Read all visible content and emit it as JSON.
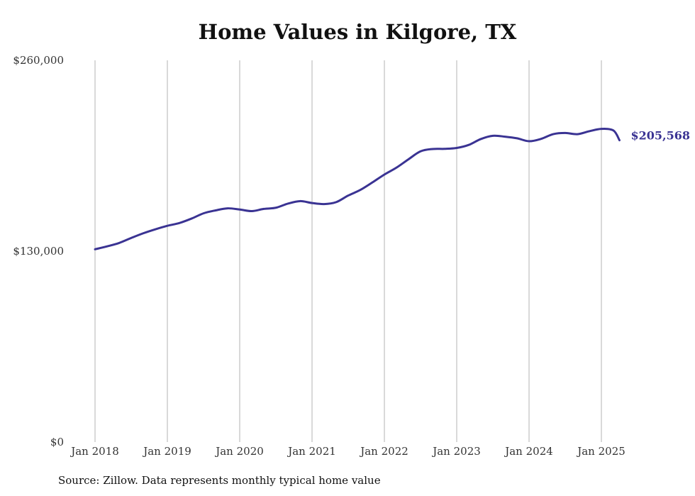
{
  "chart_data": {
    "type": "line",
    "title": "Home Values in Kilgore, TX",
    "xlabel": "",
    "ylabel": "",
    "ylim": [
      0,
      260000
    ],
    "y_ticks": [
      {
        "value": 0,
        "label": "$0"
      },
      {
        "value": 130000,
        "label": "$130,000"
      },
      {
        "value": 260000,
        "label": "$260,000"
      }
    ],
    "x_ticks": [
      {
        "value": 2018.0,
        "label": "Jan 2018"
      },
      {
        "value": 2019.0,
        "label": "Jan 2019"
      },
      {
        "value": 2020.0,
        "label": "Jan 2020"
      },
      {
        "value": 2021.0,
        "label": "Jan 2021"
      },
      {
        "value": 2022.0,
        "label": "Jan 2022"
      },
      {
        "value": 2023.0,
        "label": "Jan 2023"
      },
      {
        "value": 2024.0,
        "label": "Jan 2024"
      },
      {
        "value": 2025.0,
        "label": "Jan 2025"
      }
    ],
    "grid": "vertical",
    "line_color": "#3a3393",
    "end_label": "$205,568",
    "series": [
      {
        "name": "",
        "x": [
          "2018-01",
          "2018-03",
          "2018-05",
          "2018-07",
          "2018-09",
          "2018-11",
          "2019-01",
          "2019-03",
          "2019-05",
          "2019-07",
          "2019-09",
          "2019-11",
          "2020-01",
          "2020-03",
          "2020-05",
          "2020-07",
          "2020-09",
          "2020-11",
          "2021-01",
          "2021-03",
          "2021-05",
          "2021-07",
          "2021-09",
          "2021-11",
          "2022-01",
          "2022-03",
          "2022-05",
          "2022-07",
          "2022-09",
          "2022-11",
          "2023-01",
          "2023-03",
          "2023-05",
          "2023-07",
          "2023-09",
          "2023-11",
          "2024-01",
          "2024-03",
          "2024-05",
          "2024-07",
          "2024-09",
          "2024-11",
          "2025-01",
          "2025-03",
          "2025-04"
        ],
        "values": [
          131300,
          133300,
          135600,
          139000,
          142200,
          144900,
          147300,
          149200,
          152200,
          155800,
          157800,
          159200,
          158400,
          157300,
          158800,
          159600,
          162400,
          164100,
          162800,
          162100,
          163400,
          167900,
          171700,
          176800,
          182200,
          186900,
          192600,
          198000,
          199600,
          199700,
          200300,
          202400,
          206400,
          208600,
          208000,
          206900,
          204900,
          206500,
          209700,
          210500,
          209700,
          211700,
          213300,
          212200,
          205568
        ]
      }
    ]
  },
  "source_note": "Source: Zillow. Data represents monthly typical home value"
}
